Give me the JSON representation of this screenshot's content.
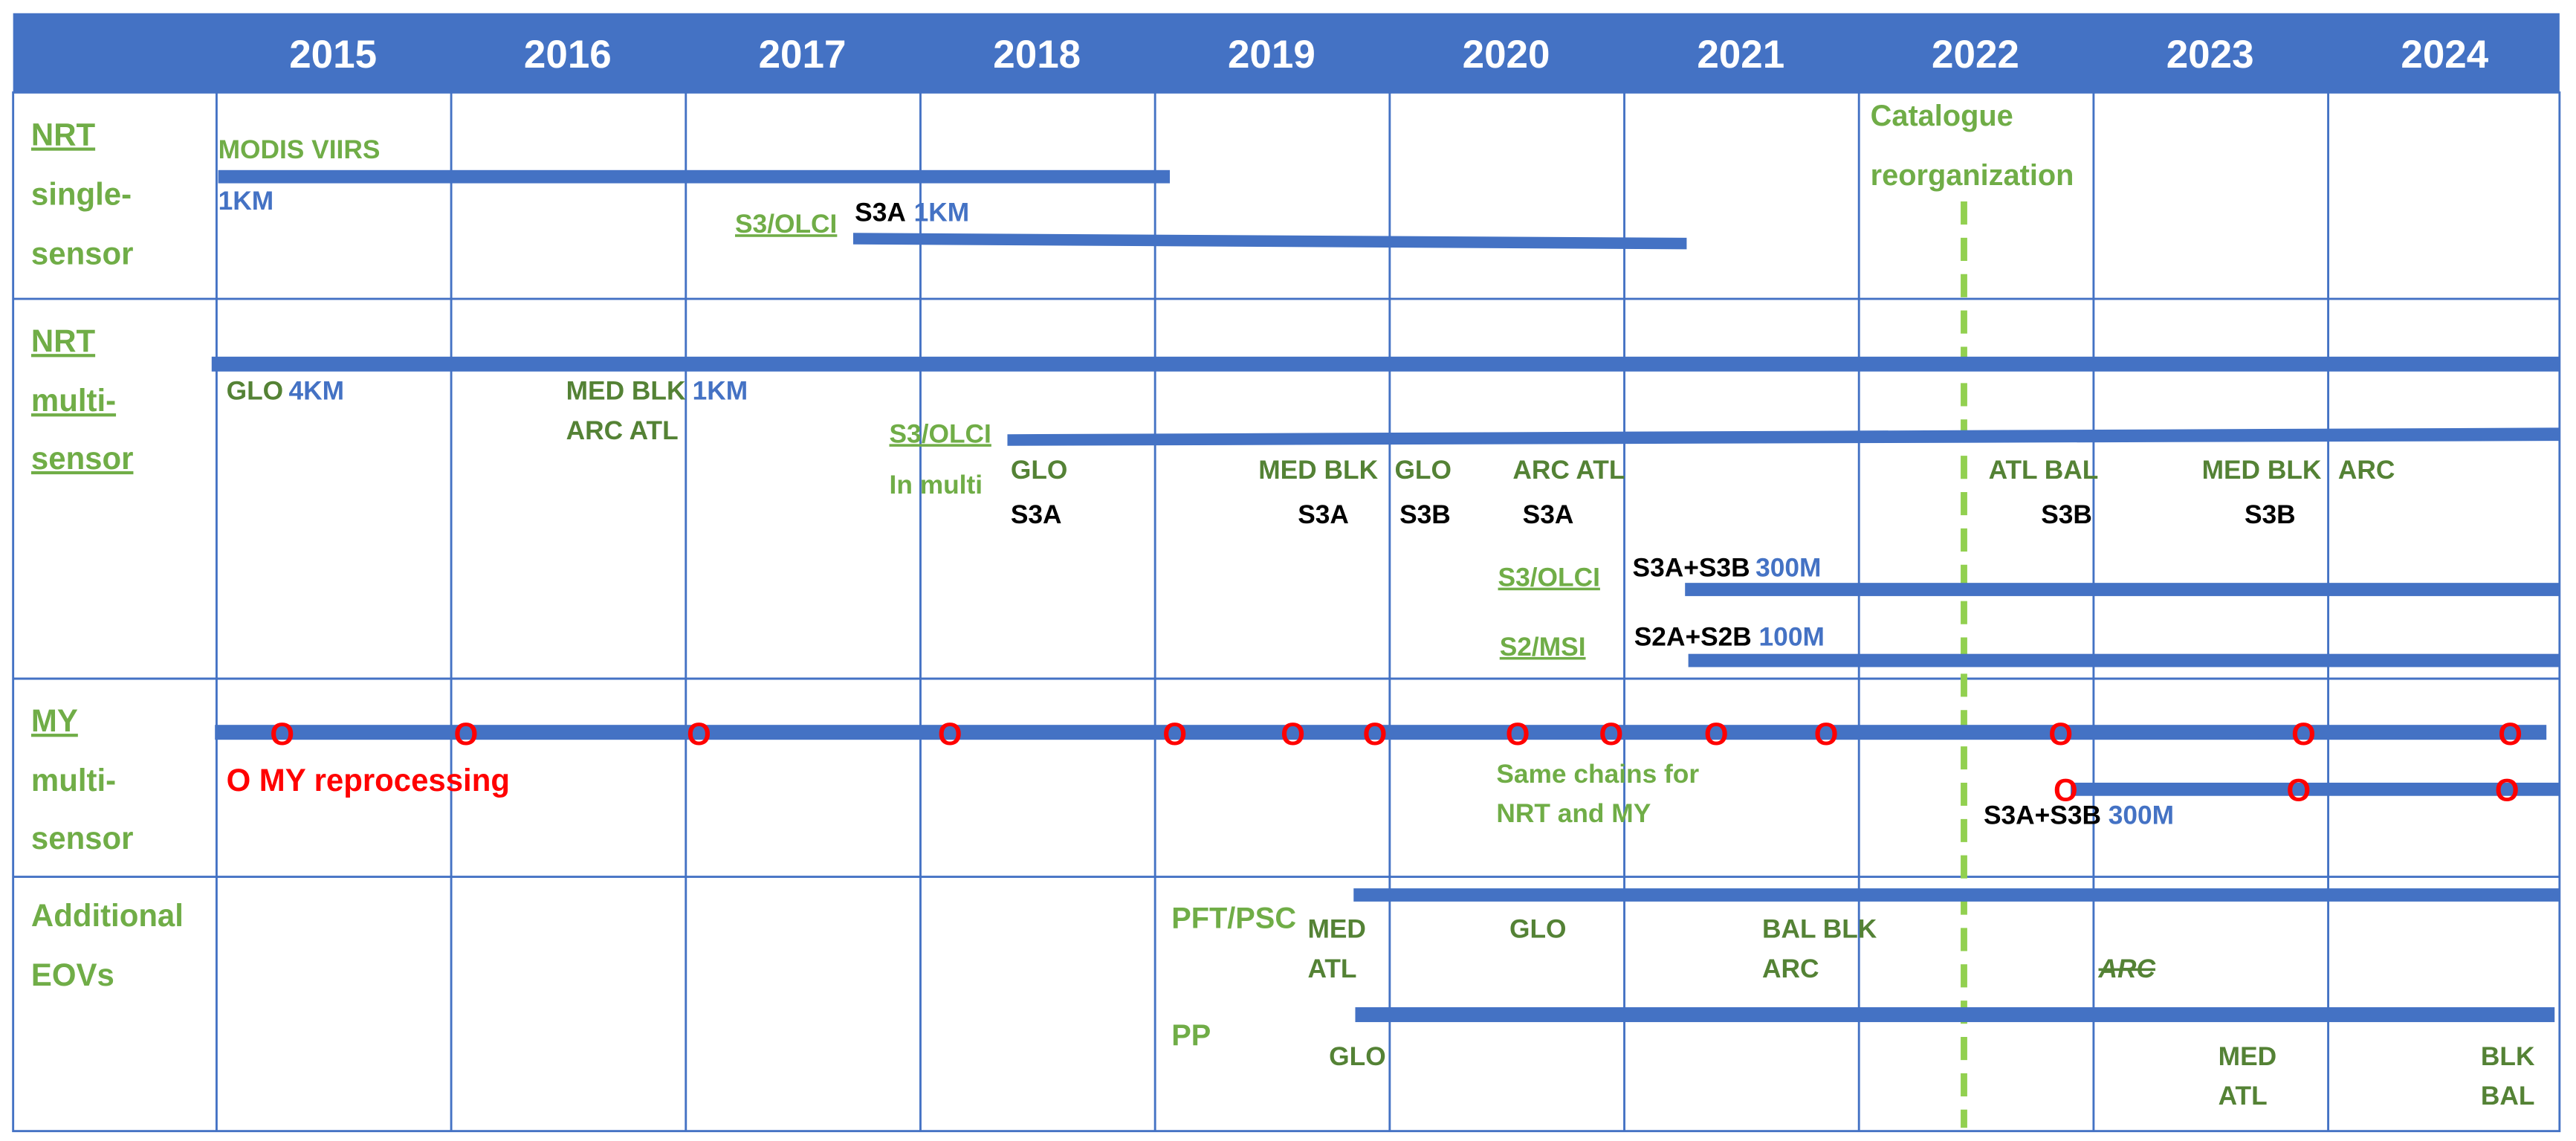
{
  "colors": {
    "header_bg": "#4472C4",
    "header_text": "#FFFFFF",
    "bar": "#4472C4",
    "grid": "#4472C4",
    "green": "#70AD47",
    "dark_green": "#548235",
    "black": "#000000",
    "blue_text": "#4472C4",
    "red": "#FF0000",
    "dashed_line": "#92D050"
  },
  "years": [
    "2015",
    "2016",
    "2017",
    "2018",
    "2019",
    "2020",
    "2021",
    "2022",
    "2023",
    "2024"
  ],
  "rows": [
    {
      "id": "nrt-single",
      "lines": [
        "NRT",
        "single-",
        "sensor"
      ]
    },
    {
      "id": "nrt-multi",
      "lines": [
        "NRT",
        "multi-",
        "sensor"
      ]
    },
    {
      "id": "my-multi",
      "lines": [
        "MY",
        "multi-",
        "sensor"
      ]
    },
    {
      "id": "additional",
      "lines": [
        "Additional",
        "EOVs"
      ]
    }
  ],
  "catalogue_note": [
    "Catalogue",
    "reorganization"
  ],
  "labels": {
    "modis_viirs": "MODIS VIIRS",
    "km1_a": "1KM",
    "s3_olci_a": "S3/OLCI",
    "s3a_a": "S3A",
    "km1_b": "1KM",
    "glo_a": "GLO",
    "km4": "4KM",
    "med_blk_a": "MED BLK",
    "km1_c": "1KM",
    "arc_atl_a": "ARC ATL",
    "s3_olci_b": "S3/OLCI",
    "in_multi": "In multi",
    "glo_b": "GLO",
    "s3a_b": "S3A",
    "med_blk_b": "MED BLK",
    "s3a_c": "S3A",
    "glo_c": "GLO",
    "s3b_a": "S3B",
    "arc_atl_b": "ARC ATL",
    "s3a_d": "S3A",
    "atl_bal": "ATL BAL",
    "s3b_b": "S3B",
    "med_blk_c": "MED BLK",
    "arc_a": "ARC",
    "s3b_c": "S3B",
    "s3_olci_c": "S3/OLCI",
    "s3a_s3b_a": "S3A+S3B",
    "m300_a": "300M",
    "s2_msi": "S2/MSI",
    "s2a_s2b": "S2A+S2B",
    "m100": "100M",
    "o_marker": "O",
    "my_reprocessing": "MY reprocessing",
    "same_chains_1": "Same chains for",
    "same_chains_2": "NRT and MY",
    "s3a_s3b_b": "S3A+S3B",
    "m300_b": "300M",
    "pft_psc": "PFT/PSC",
    "med_d": "MED",
    "atl_d": "ATL",
    "glo_d": "GLO",
    "bal_blk": "BAL BLK",
    "arc_b": "ARC",
    "arc_struck": "ARC",
    "pp": "PP",
    "glo_e": "GLO",
    "med_e": "MED",
    "atl_e": "ATL",
    "blk_e": "BLK",
    "bal_e": "BAL"
  },
  "markers": {
    "my_main_row": [
      "2015.3",
      "2016.1",
      "2017.1",
      "2018.1",
      "2019.1",
      "2019.6",
      "2019.9",
      "2020.1",
      "2020.5",
      "2020.9",
      "2021.4",
      "2022.4",
      "2023.4",
      "2024.3"
    ],
    "my_300m_row": [
      "2022.4",
      "2023.4",
      "2024.3"
    ]
  }
}
